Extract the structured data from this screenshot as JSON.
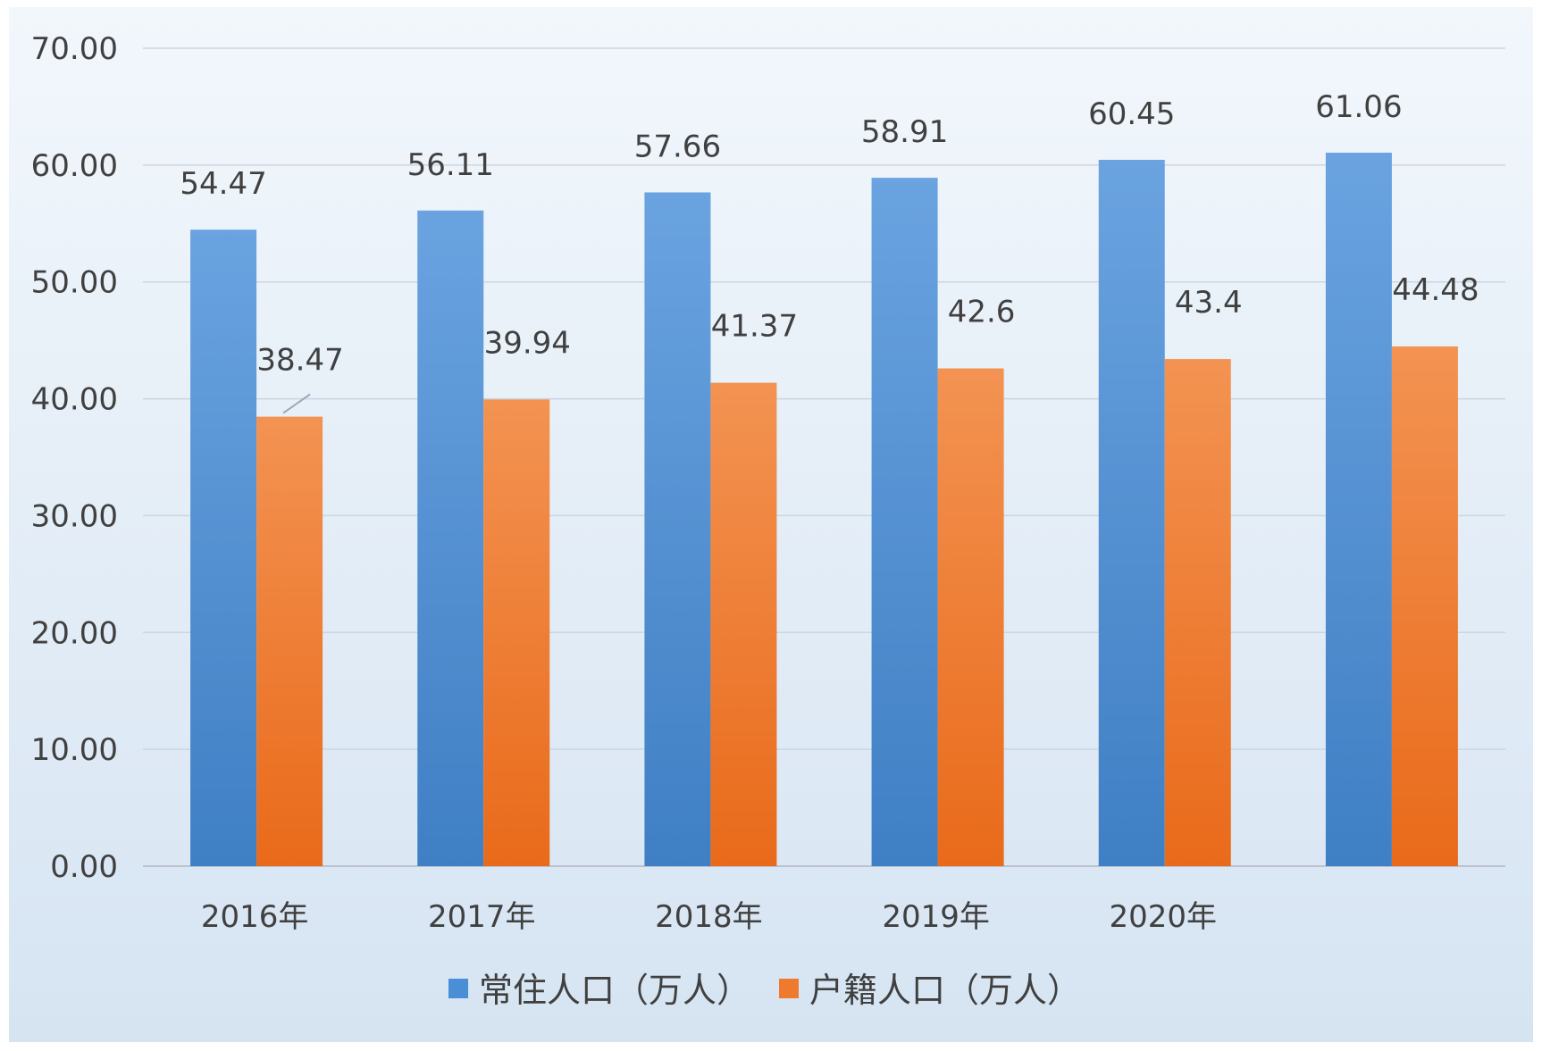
{
  "chart_data": {
    "type": "bar",
    "title": "",
    "xlabel": "",
    "ylabel": "",
    "categories": [
      "2016年",
      "2017年",
      "2018年",
      "2019年",
      "2020年",
      ""
    ],
    "series": [
      {
        "name": "常住人口（万人）",
        "values": [
          54.47,
          56.11,
          57.66,
          58.91,
          60.45,
          61.06
        ],
        "labels": [
          "54.47",
          "56.11",
          "57.66",
          "58.91",
          "60.45",
          "61.06"
        ],
        "color": "#4a8fd6"
      },
      {
        "name": "户籍人口（万人）",
        "values": [
          38.47,
          39.94,
          41.37,
          42.6,
          43.4,
          44.48
        ],
        "labels": [
          "38.47",
          "39.94",
          "41.37",
          "42.6",
          "43.4",
          "44.48"
        ],
        "color": "#ef7a2e"
      }
    ],
    "ylim": [
      0,
      70
    ],
    "yticks": [
      "0.00",
      "10.00",
      "20.00",
      "30.00",
      "40.00",
      "50.00",
      "60.00",
      "70.00"
    ],
    "grid": true,
    "legend_position": "bottom",
    "background_color": "#e6eff8",
    "gridline_color": "#cbd6e2"
  }
}
